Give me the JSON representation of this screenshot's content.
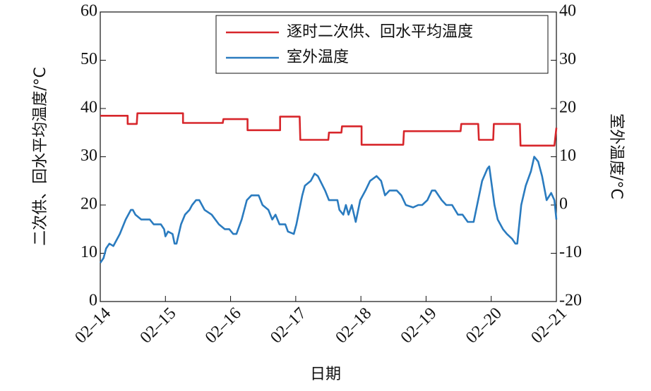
{
  "chart_data": {
    "type": "line",
    "xlabel": "日期",
    "ylabel": "二次供、回水平均温度/°C",
    "y2label": "室外温度/°C",
    "xlim": [
      0,
      7
    ],
    "xticks": [
      {
        "value": 0,
        "label": "02–14"
      },
      {
        "value": 1,
        "label": "02–15"
      },
      {
        "value": 2,
        "label": "02–16"
      },
      {
        "value": 3,
        "label": "02–17"
      },
      {
        "value": 4,
        "label": "02–18"
      },
      {
        "value": 5,
        "label": "02–19"
      },
      {
        "value": 6,
        "label": "02–20"
      },
      {
        "value": 7,
        "label": "02–21"
      }
    ],
    "ylim": [
      0,
      60
    ],
    "yticks": [
      0,
      10,
      20,
      30,
      40,
      50,
      60
    ],
    "y2lim": [
      -20,
      40
    ],
    "y2ticks": [
      -20,
      -10,
      0,
      10,
      20,
      30,
      40
    ],
    "legend": "upper right",
    "series": [
      {
        "name": "逐时二次供、回水平均温度",
        "color": "#d7262b",
        "x": [
          0,
          0.42,
          0.42,
          0.56,
          0.57,
          1.27,
          1.27,
          1.88,
          1.89,
          2.26,
          2.26,
          2.76,
          2.76,
          3.06,
          3.07,
          3.5,
          3.51,
          3.7,
          3.71,
          4.01,
          4.01,
          4.65,
          4.66,
          5.53,
          5.54,
          5.8,
          5.81,
          6.03,
          6.04,
          6.44,
          6.45,
          6.97,
          7
        ],
        "values": [
          38.5,
          38.5,
          36.8,
          36.8,
          39,
          39,
          37,
          37,
          37.8,
          37.8,
          35.5,
          35.5,
          38.3,
          38.3,
          33.5,
          33.5,
          35,
          35,
          36.3,
          36.3,
          32.5,
          32.5,
          35.3,
          35.3,
          36.8,
          36.8,
          33.5,
          33.5,
          36.8,
          36.8,
          32.3,
          32.3,
          36
        ]
      },
      {
        "name": "室外温度",
        "color": "#2a7bbf",
        "axis": "y2",
        "x": [
          0,
          0.05,
          0.09,
          0.14,
          0.2,
          0.3,
          0.39,
          0.47,
          0.5,
          0.54,
          0.63,
          0.76,
          0.82,
          0.93,
          0.98,
          1.0,
          1.04,
          1.11,
          1.14,
          1.17,
          1.24,
          1.3,
          1.37,
          1.41,
          1.47,
          1.52,
          1.6,
          1.71,
          1.82,
          1.91,
          1.98,
          2.04,
          2.09,
          2.17,
          2.25,
          2.32,
          2.43,
          2.49,
          2.58,
          2.64,
          2.69,
          2.75,
          2.84,
          2.88,
          2.97,
          3.01,
          3.1,
          3.14,
          3.23,
          3.29,
          3.34,
          3.45,
          3.51,
          3.64,
          3.67,
          3.73,
          3.77,
          3.81,
          3.86,
          3.92,
          3.99,
          4.07,
          4.14,
          4.24,
          4.31,
          4.37,
          4.44,
          4.55,
          4.62,
          4.69,
          4.8,
          4.88,
          4.94,
          5.02,
          5.09,
          5.14,
          5.24,
          5.31,
          5.4,
          5.49,
          5.56,
          5.64,
          5.73,
          5.86,
          5.94,
          5.97,
          6.05,
          6.1,
          6.18,
          6.24,
          6.32,
          6.37,
          6.4,
          6.46,
          6.53,
          6.61,
          6.66,
          6.72,
          6.78,
          6.85,
          6.92,
          6.97,
          7.0
        ],
        "values": [
          -12,
          -11,
          -9,
          -8,
          -8.5,
          -6,
          -3,
          -1,
          -1,
          -2,
          -3,
          -3,
          -4,
          -4,
          -5,
          -6.5,
          -5.5,
          -6,
          -8,
          -8,
          -4,
          -2,
          -1,
          0,
          1,
          1,
          -1,
          -2,
          -4,
          -5,
          -5,
          -6,
          -6,
          -3,
          1,
          2,
          2,
          0,
          -1,
          -3,
          -2,
          -4,
          -4,
          -5.5,
          -6,
          -4,
          2,
          4,
          5,
          6.5,
          6,
          3,
          1,
          1,
          -1,
          -2,
          0,
          -2,
          0,
          -3.5,
          1,
          3,
          5,
          6,
          5,
          2,
          3,
          3,
          2,
          0,
          -0.5,
          0,
          0,
          1,
          3,
          3,
          1,
          0,
          0,
          -2,
          -2,
          -3.5,
          -3.5,
          5,
          7.5,
          8,
          0,
          -3,
          -5,
          -6,
          -7,
          -8,
          -8,
          0,
          4,
          7,
          10,
          9,
          6,
          1,
          2.5,
          1,
          -3
        ]
      }
    ]
  }
}
